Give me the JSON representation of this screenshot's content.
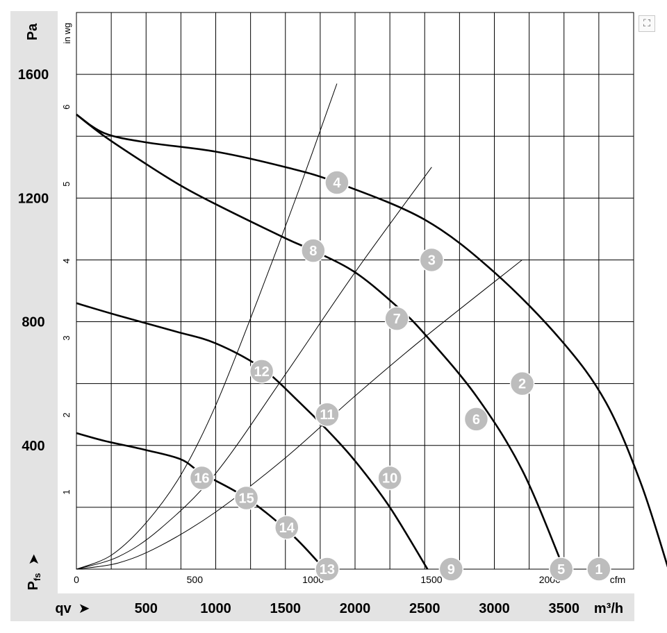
{
  "chart_data": {
    "type": "line",
    "title": "",
    "left_axis": {
      "label": "Pa",
      "ticks": [
        400,
        800,
        1200,
        1600
      ],
      "tick_labels": [
        "400",
        "800",
        "1200",
        "1600"
      ],
      "range": [
        0,
        1800
      ]
    },
    "inner_left_axis": {
      "label": "in wg",
      "ticks": [
        1,
        2,
        3,
        4,
        5,
        6
      ],
      "tick_labels": [
        "1",
        "2",
        "3",
        "4",
        "5",
        "6"
      ]
    },
    "bottom_axis": {
      "label": "m³/h",
      "ticks": [
        500,
        1000,
        1500,
        2000,
        2500,
        3000,
        3500
      ],
      "tick_labels": [
        "500",
        "1000",
        "1500",
        "2000",
        "2500",
        "3000",
        "3500"
      ],
      "range": [
        0,
        4000
      ]
    },
    "inner_bottom_axis": {
      "label": "cfm",
      "ticks": [
        0,
        500,
        1000,
        1500,
        2000
      ],
      "tick_labels": [
        "0",
        "500",
        "1000",
        "1500",
        "2000"
      ]
    },
    "y_symbol": "Pfs",
    "y_symbol_main": "P",
    "y_symbol_sub": "fs",
    "x_symbol": "qv",
    "arrow": "➤",
    "grid": true,
    "fan_curves": [
      {
        "points": [
          [
            0,
            1470
          ],
          [
            200,
            1410
          ],
          [
            500,
            1380
          ],
          [
            1000,
            1350
          ],
          [
            1500,
            1300
          ],
          [
            1870,
            1250
          ],
          [
            2500,
            1130
          ],
          [
            3000,
            960
          ],
          [
            3480,
            740
          ],
          [
            3800,
            540
          ],
          [
            4050,
            280
          ],
          [
            4250,
            0
          ]
        ]
      },
      {
        "points": [
          [
            0,
            1470
          ],
          [
            200,
            1400
          ],
          [
            500,
            1310
          ],
          [
            750,
            1240
          ],
          [
            1000,
            1180
          ],
          [
            1500,
            1070
          ],
          [
            1700,
            1030
          ],
          [
            2000,
            960
          ],
          [
            2300,
            850
          ],
          [
            2500,
            760
          ],
          [
            2870,
            560
          ],
          [
            3200,
            320
          ],
          [
            3500,
            0
          ]
        ]
      },
      {
        "points": [
          [
            0,
            860
          ],
          [
            300,
            820
          ],
          [
            700,
            770
          ],
          [
            1000,
            730
          ],
          [
            1330,
            650
          ],
          [
            1600,
            540
          ],
          [
            1800,
            450
          ],
          [
            2000,
            350
          ],
          [
            2250,
            200
          ],
          [
            2520,
            0
          ]
        ]
      },
      {
        "points": [
          [
            0,
            440
          ],
          [
            200,
            415
          ],
          [
            500,
            385
          ],
          [
            750,
            355
          ],
          [
            900,
            310
          ],
          [
            1220,
            230
          ],
          [
            1550,
            110
          ],
          [
            1780,
            0
          ]
        ]
      }
    ],
    "system_curves": [
      {
        "points": [
          [
            0,
            0
          ],
          [
            300,
            20
          ],
          [
            600,
            75
          ],
          [
            1000,
            185
          ],
          [
            1500,
            360
          ],
          [
            2000,
            560
          ],
          [
            2500,
            750
          ],
          [
            3200,
            1000
          ]
        ]
      },
      {
        "points": [
          [
            0,
            0
          ],
          [
            300,
            40
          ],
          [
            600,
            130
          ],
          [
            1000,
            310
          ],
          [
            1500,
            630
          ],
          [
            2000,
            960
          ],
          [
            2550,
            1300
          ]
        ]
      },
      {
        "points": [
          [
            0,
            0
          ],
          [
            250,
            45
          ],
          [
            500,
            150
          ],
          [
            750,
            305
          ],
          [
            1000,
            530
          ],
          [
            1300,
            870
          ],
          [
            1600,
            1230
          ],
          [
            1870,
            1570
          ]
        ]
      }
    ],
    "markers": [
      {
        "label": "1",
        "x": 3750,
        "y": 0
      },
      {
        "label": "2",
        "x": 3200,
        "y": 600
      },
      {
        "label": "3",
        "x": 2550,
        "y": 1000
      },
      {
        "label": "4",
        "x": 1870,
        "y": 1250
      },
      {
        "label": "5",
        "x": 3480,
        "y": 0
      },
      {
        "label": "6",
        "x": 2870,
        "y": 485
      },
      {
        "label": "7",
        "x": 2300,
        "y": 810
      },
      {
        "label": "8",
        "x": 1700,
        "y": 1030
      },
      {
        "label": "9",
        "x": 2690,
        "y": 0
      },
      {
        "label": "10",
        "x": 2250,
        "y": 295
      },
      {
        "label": "11",
        "x": 1800,
        "y": 500
      },
      {
        "label": "12",
        "x": 1330,
        "y": 640
      },
      {
        "label": "13",
        "x": 1800,
        "y": 0
      },
      {
        "label": "14",
        "x": 1510,
        "y": 135
      },
      {
        "label": "15",
        "x": 1220,
        "y": 230
      },
      {
        "label": "16",
        "x": 900,
        "y": 295
      }
    ]
  },
  "expand_icon": "expand-icon",
  "expand_glyph": "⛶"
}
